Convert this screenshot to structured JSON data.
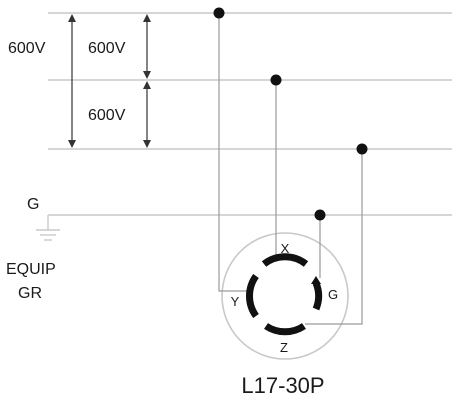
{
  "diagram": {
    "voltages": {
      "outer_left": "600V",
      "inner_top": "600V",
      "inner_bottom": "600V"
    },
    "ground": {
      "label": "G",
      "equip_line1": "EQUIP",
      "equip_line2": "GR"
    },
    "terminals": {
      "x": "X",
      "y": "Y",
      "z": "Z",
      "g": "G"
    },
    "title": "L17-30P",
    "colors": {
      "line": "#c9c9c9",
      "wire": "#9a9a9a",
      "dot": "#111111",
      "blade": "#111111",
      "text": "#1a1a1a"
    }
  }
}
